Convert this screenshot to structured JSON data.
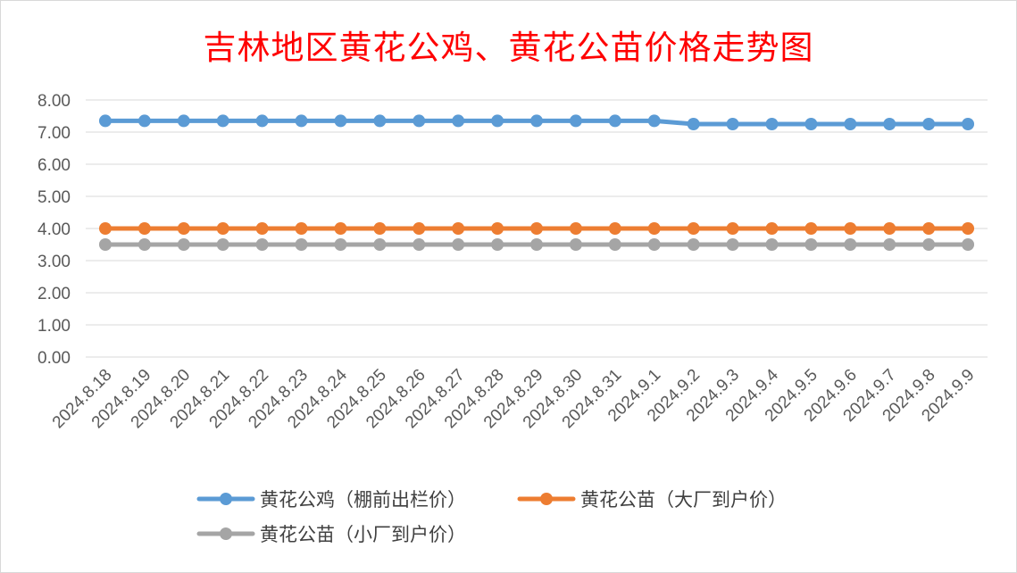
{
  "chart_data": {
    "type": "line",
    "title": "吉林地区黄花公鸡、黄花公苗价格走势图",
    "x": [
      "2024.8.18",
      "2024.8.19",
      "2024.8.20",
      "2024.8.21",
      "2024.8.22",
      "2024.8.23",
      "2024.8.24",
      "2024.8.25",
      "2024.8.26",
      "2024.8.27",
      "2024.8.28",
      "2024.8.29",
      "2024.8.30",
      "2024.8.31",
      "2024.9.1",
      "2024.9.2",
      "2024.9.3",
      "2024.9.4",
      "2024.9.5",
      "2024.9.6",
      "2024.9.7",
      "2024.9.8",
      "2024.9.9"
    ],
    "ylim": [
      0,
      8
    ],
    "yticks": [
      "0.00",
      "1.00",
      "2.00",
      "3.00",
      "4.00",
      "5.00",
      "6.00",
      "7.00",
      "8.00"
    ],
    "grid": true,
    "legend_position": "bottom",
    "series": [
      {
        "name": "黄花公鸡（棚前出栏价）",
        "color": "#5b9bd5",
        "values": [
          7.35,
          7.35,
          7.35,
          7.35,
          7.35,
          7.35,
          7.35,
          7.35,
          7.35,
          7.35,
          7.35,
          7.35,
          7.35,
          7.35,
          7.35,
          7.25,
          7.25,
          7.25,
          7.25,
          7.25,
          7.25,
          7.25,
          7.25
        ]
      },
      {
        "name": "黄花公苗（大厂到户价）",
        "color": "#ed7d31",
        "values": [
          4.0,
          4.0,
          4.0,
          4.0,
          4.0,
          4.0,
          4.0,
          4.0,
          4.0,
          4.0,
          4.0,
          4.0,
          4.0,
          4.0,
          4.0,
          4.0,
          4.0,
          4.0,
          4.0,
          4.0,
          4.0,
          4.0,
          4.0
        ]
      },
      {
        "name": "黄花公苗（小厂到户价）",
        "color": "#a5a5a5",
        "values": [
          3.5,
          3.5,
          3.5,
          3.5,
          3.5,
          3.5,
          3.5,
          3.5,
          3.5,
          3.5,
          3.5,
          3.5,
          3.5,
          3.5,
          3.5,
          3.5,
          3.5,
          3.5,
          3.5,
          3.5,
          3.5,
          3.5,
          3.5
        ]
      }
    ]
  }
}
